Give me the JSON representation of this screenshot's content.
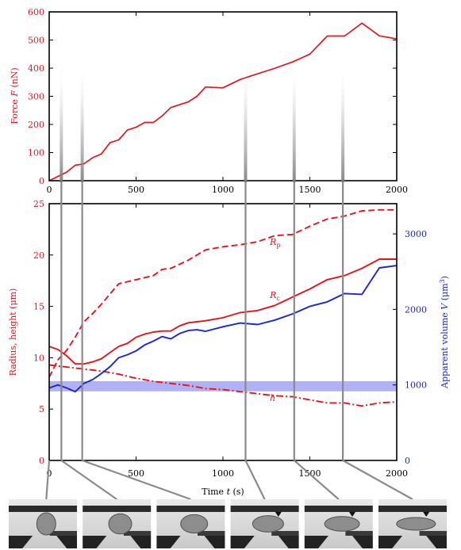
{
  "colors": {
    "red": "#e8141b",
    "blue": "#1a24d8",
    "band": "#a9aaf5",
    "frame": "#000000",
    "guide": "#8a8a8a"
  },
  "chart_data": [
    {
      "type": "line",
      "ylabel": "Force F (nN)",
      "xlim": [
        0,
        2000
      ],
      "ylim": [
        0,
        600
      ],
      "xticks": [
        0,
        500,
        1000,
        1500,
        2000
      ],
      "yticks": [
        0,
        100,
        200,
        300,
        400,
        500,
        600
      ],
      "grid": false,
      "series": [
        {
          "color": "red",
          "x": [
            0,
            100,
            150,
            200,
            250,
            300,
            350,
            400,
            450,
            500,
            550,
            600,
            650,
            700,
            750,
            800,
            850,
            900,
            1000,
            1100,
            1200,
            1300,
            1400,
            1500,
            1600,
            1700,
            1800,
            1900,
            2000
          ],
          "y": [
            0,
            30,
            55,
            60,
            82,
            95,
            135,
            145,
            180,
            190,
            207,
            207,
            230,
            260,
            270,
            280,
            300,
            333,
            330,
            360,
            380,
            400,
            422,
            450,
            514,
            514,
            560,
            515,
            504
          ]
        }
      ]
    },
    {
      "type": "line",
      "xlabel": "Time t (s)",
      "ylabel": "Radius, height (μm)",
      "y2label": "Apparent volume V (μm³)",
      "xlim": [
        0,
        2000
      ],
      "ylim": [
        0,
        25
      ],
      "y2lim": [
        0,
        3400
      ],
      "xticks": [
        0,
        500,
        1000,
        1500,
        2000
      ],
      "yticks": [
        0,
        5,
        10,
        15,
        20,
        25
      ],
      "y2ticks": [
        0,
        1000,
        2000,
        3000
      ],
      "grid": false,
      "band": {
        "axis": "y2",
        "from": 915,
        "to": 1050,
        "color": "band"
      },
      "annotations": [
        {
          "text": "R_p",
          "x": 1270,
          "y": 21.0
        },
        {
          "text": "R_c",
          "x": 1270,
          "y": 15.8
        },
        {
          "text": "h",
          "x": 1270,
          "y": 5.8
        }
      ],
      "vlines": [
        70,
        190,
        1130,
        1410,
        1690
      ],
      "series": [
        {
          "name": "R_p",
          "color": "red",
          "style": "dashed",
          "axis": "y",
          "x": [
            0,
            50,
            100,
            150,
            200,
            250,
            300,
            350,
            400,
            450,
            500,
            550,
            600,
            650,
            700,
            750,
            800,
            850,
            900,
            1000,
            1100,
            1200,
            1300,
            1400,
            1500,
            1600,
            1700,
            1800,
            1900,
            2000
          ],
          "y": [
            8.1,
            9.8,
            10.7,
            12.0,
            13.5,
            14.3,
            15.2,
            16.2,
            17.2,
            17.4,
            17.6,
            17.8,
            18.0,
            18.6,
            18.7,
            19.1,
            19.5,
            20.0,
            20.5,
            20.8,
            21.0,
            21.3,
            21.9,
            22.0,
            22.8,
            23.5,
            23.8,
            24.3,
            24.4,
            24.4
          ]
        },
        {
          "name": "R_c",
          "color": "red",
          "style": "solid",
          "axis": "y",
          "x": [
            0,
            50,
            100,
            150,
            200,
            250,
            300,
            350,
            400,
            450,
            500,
            550,
            600,
            650,
            700,
            750,
            800,
            850,
            900,
            1000,
            1100,
            1200,
            1300,
            1400,
            1500,
            1600,
            1700,
            1800,
            1900,
            2000
          ],
          "y": [
            11.1,
            10.8,
            10.2,
            9.4,
            9.4,
            9.6,
            9.9,
            10.5,
            11.1,
            11.4,
            12.0,
            12.3,
            12.5,
            12.6,
            12.6,
            13.1,
            13.4,
            13.5,
            13.6,
            13.9,
            14.4,
            14.6,
            15.1,
            15.9,
            16.7,
            17.6,
            18.0,
            18.7,
            19.6,
            19.6
          ]
        },
        {
          "name": "h",
          "color": "red",
          "style": "dashdot",
          "axis": "y",
          "x": [
            0,
            100,
            200,
            300,
            400,
            500,
            600,
            700,
            800,
            900,
            1000,
            1100,
            1200,
            1300,
            1400,
            1500,
            1600,
            1700,
            1800,
            1900,
            2000
          ],
          "y": [
            9.3,
            9.1,
            8.9,
            8.7,
            8.4,
            8.0,
            7.7,
            7.5,
            7.3,
            7.0,
            6.9,
            6.7,
            6.5,
            6.3,
            6.2,
            5.9,
            5.6,
            5.6,
            5.3,
            5.6,
            5.7
          ]
        },
        {
          "name": "V",
          "color": "blue",
          "style": "solid",
          "axis": "y2",
          "x": [
            0,
            50,
            100,
            150,
            200,
            250,
            300,
            350,
            400,
            450,
            500,
            550,
            600,
            650,
            700,
            750,
            800,
            850,
            900,
            1000,
            1100,
            1200,
            1300,
            1400,
            1500,
            1600,
            1700,
            1800,
            1900,
            2000
          ],
          "y": [
            960,
            1000,
            960,
            910,
            1020,
            1070,
            1150,
            1240,
            1360,
            1400,
            1450,
            1530,
            1580,
            1640,
            1610,
            1680,
            1720,
            1730,
            1710,
            1770,
            1820,
            1800,
            1860,
            1940,
            2040,
            2100,
            2210,
            2200,
            2550,
            2580
          ]
        }
      ]
    }
  ],
  "labels": {
    "top_ylabel_prefix": "Force ",
    "top_ylabel_var": "F",
    "top_ylabel_suffix": " (nN)",
    "bottom_ylabel": "Radius, height (μm)",
    "right_ylabel_prefix": "Apparent volume ",
    "right_ylabel_var": "V",
    "right_ylabel_unit": " (μm",
    "right_ylabel_sup": "3",
    "right_ylabel_close": ")",
    "xlabel_prefix": "Time ",
    "xlabel_var": "t",
    "xlabel_suffix": " (s)",
    "rp_main": "R",
    "rp_sub": "p",
    "rc_main": "R",
    "rc_sub": "c",
    "h_label": "h"
  },
  "thumbnails": [
    {
      "name": "frame-1"
    },
    {
      "name": "frame-2"
    },
    {
      "name": "frame-3"
    },
    {
      "name": "frame-4"
    },
    {
      "name": "frame-5"
    },
    {
      "name": "frame-6"
    }
  ]
}
